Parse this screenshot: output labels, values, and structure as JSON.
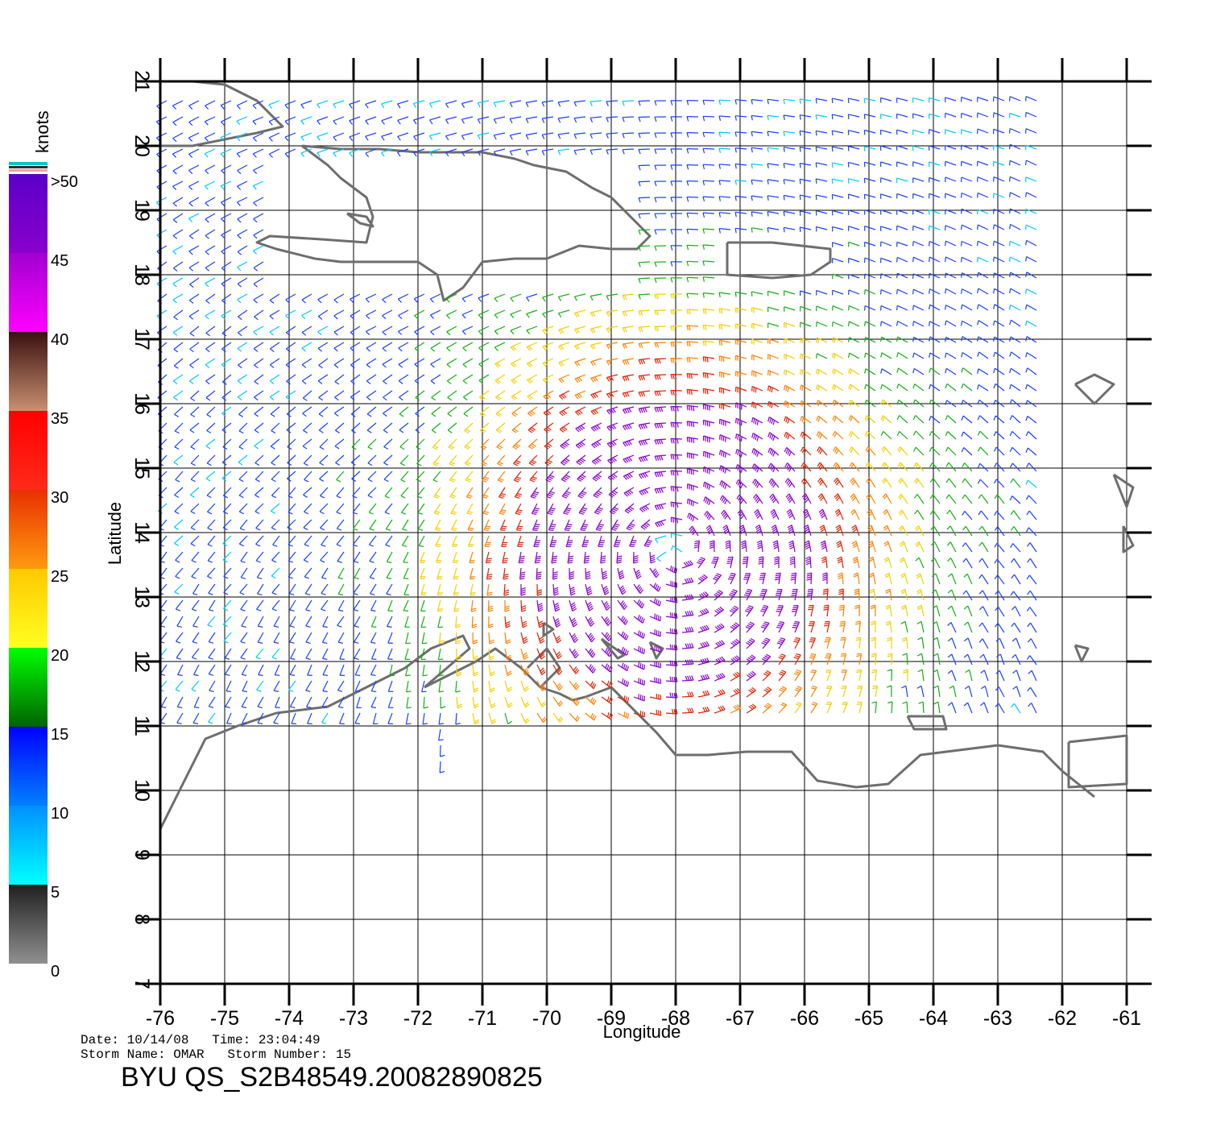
{
  "map": {
    "x_axis_title": "Longitude",
    "y_axis_title": "Latitude",
    "lon_ticks": [
      "-76",
      "-75",
      "-74",
      "-73",
      "-72",
      "-71",
      "-70",
      "-69",
      "-68",
      "-67",
      "-66",
      "-65",
      "-64",
      "-63",
      "-62",
      "-61"
    ],
    "lat_ticks": [
      "7",
      "8",
      "9",
      "10",
      "11",
      "12",
      "13",
      "14",
      "15",
      "16",
      "17",
      "18",
      "19",
      "20",
      "21"
    ],
    "lon_range": [
      -76,
      -61
    ],
    "lat_range": [
      7,
      21
    ],
    "grid": true,
    "coastline_color": "#6e6e6e"
  },
  "colorbar": {
    "title": "knots",
    "labels": [
      ">50",
      "45",
      "40",
      "35",
      "30",
      "25",
      "20",
      "15",
      "10",
      "5",
      "0"
    ],
    "bands": [
      {
        "from": 45,
        "to": 50,
        "top": "#5a00c8",
        "bottom": "#8a00cc"
      },
      {
        "from": 40,
        "to": 45,
        "top": "#a000d0",
        "bottom": "#ff00ff"
      },
      {
        "from": 35,
        "to": 40,
        "top": "#3a1010",
        "bottom": "#c89070"
      },
      {
        "from": 30,
        "to": 35,
        "top": "#ff0000",
        "bottom": "#ff2a1a"
      },
      {
        "from": 25,
        "to": 30,
        "top": "#e83000",
        "bottom": "#ff9a10"
      },
      {
        "from": 20,
        "to": 25,
        "top": "#ffc800",
        "bottom": "#ffff20"
      },
      {
        "from": 15,
        "to": 20,
        "top": "#00ff00",
        "bottom": "#006400"
      },
      {
        "from": 10,
        "to": 15,
        "top": "#0000ff",
        "bottom": "#0080ff"
      },
      {
        "from": 5,
        "to": 10,
        "top": "#0090ff",
        "bottom": "#00ffff"
      },
      {
        "from": 0,
        "to": 5,
        "top": "#202020",
        "bottom": "#909090"
      }
    ]
  },
  "footer": {
    "date_line": "Date: 10/14/08   Time: 23:04:49",
    "storm_line": "Storm Name: OMAR   Storm Number: 15",
    "file_id": "BYU QS_S2B48549.20082890825"
  },
  "storm_center": {
    "lon": -68.0,
    "lat": 13.8
  },
  "wind_palette": {
    "calm": "#303030",
    "light": "#00c8ff",
    "moderate": "#1a40ff",
    "fresh": "#10b010",
    "strong": "#f0d000",
    "gale": "#ff8000",
    "storm": "#e02000",
    "violent": "#8800cc"
  }
}
